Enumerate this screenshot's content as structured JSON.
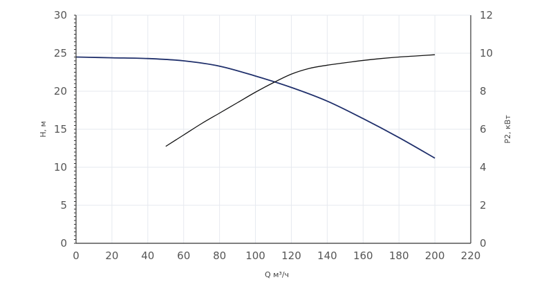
{
  "chart_data": {
    "type": "line",
    "xlabel": "Q м³/ч",
    "ylabel_left": "H, м",
    "ylabel_right": "P2, кВт",
    "xlim": [
      0,
      220
    ],
    "ylim_left": [
      0,
      30
    ],
    "ylim_right": [
      0,
      12
    ],
    "x_ticks": [
      "0",
      "20",
      "40",
      "60",
      "80",
      "100",
      "120",
      "140",
      "160",
      "180",
      "200",
      "220"
    ],
    "y_ticks_left": [
      "0",
      "5",
      "10",
      "15",
      "20",
      "25",
      "30"
    ],
    "y_ticks_right": [
      "0",
      "2",
      "4",
      "6",
      "8",
      "10",
      "12"
    ],
    "grid": true,
    "series": [
      {
        "axis": "left",
        "color": "#1f2f6b",
        "x": [
          0,
          20,
          40,
          60,
          80,
          100,
          120,
          140,
          160,
          180,
          200
        ],
        "y": [
          24.5,
          24.4,
          24.3,
          24.0,
          23.3,
          22.0,
          20.5,
          18.7,
          16.4,
          13.9,
          11.2
        ]
      },
      {
        "axis": "right",
        "color": "#111111",
        "x": [
          50,
          60,
          70,
          80,
          90,
          100,
          110,
          120,
          130,
          140,
          150,
          160,
          170,
          180,
          190,
          200
        ],
        "y": [
          5.1,
          5.7,
          6.3,
          6.85,
          7.4,
          7.95,
          8.45,
          8.9,
          9.2,
          9.37,
          9.5,
          9.62,
          9.72,
          9.8,
          9.86,
          9.92
        ]
      }
    ]
  }
}
